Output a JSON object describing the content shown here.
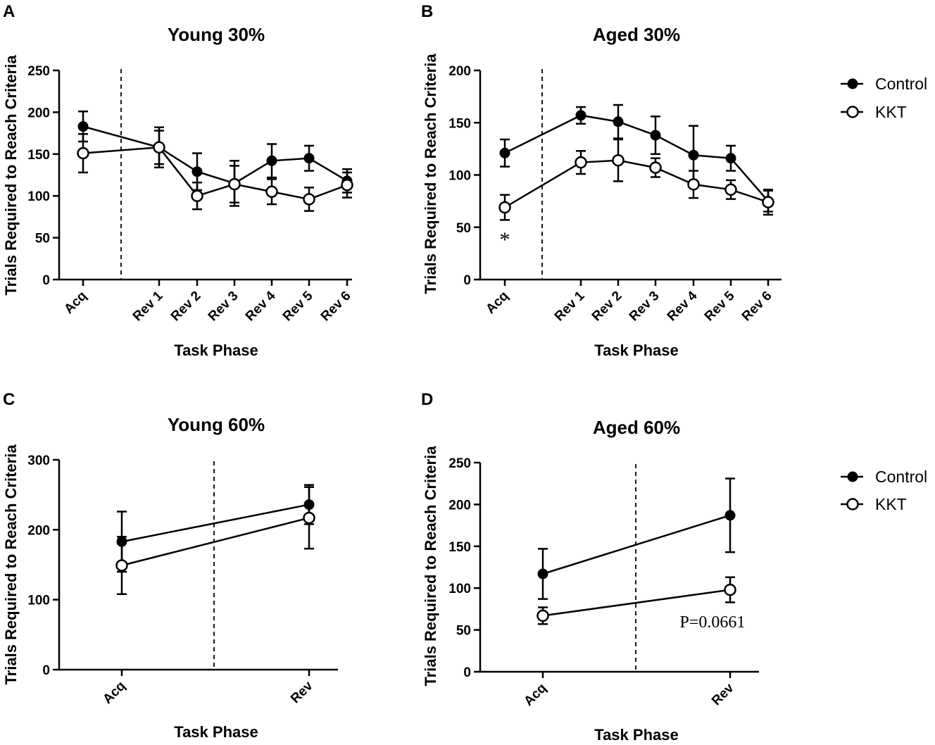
{
  "legend": {
    "control": "Control",
    "kkt": "KKT"
  },
  "chart_data": [
    {
      "panel": "A",
      "type": "line",
      "title": "Young 30%",
      "xlabel": "Task Phase",
      "ylabel": "Trials Required to Reach Criteria",
      "ylim": [
        0,
        250
      ],
      "yticks": [
        0,
        50,
        100,
        150,
        200,
        250
      ],
      "categories": [
        "Acq",
        "Rev 1",
        "Rev 2",
        "Rev 3",
        "Rev 4",
        "Rev 5",
        "Rev 6"
      ],
      "series": [
        {
          "name": "Control",
          "values": [
            183,
            158,
            129,
            115,
            142,
            145,
            118
          ],
          "errors": [
            18,
            20,
            22,
            27,
            20,
            15,
            14
          ]
        },
        {
          "name": "KKT",
          "values": [
            151,
            158,
            100,
            114,
            105,
            96,
            113
          ],
          "errors": [
            23,
            24,
            16,
            22,
            15,
            14,
            15
          ]
        }
      ],
      "annotations": []
    },
    {
      "panel": "B",
      "type": "line",
      "title": "Aged 30%",
      "xlabel": "Task Phase",
      "ylabel": "Trials Required to Reach Criteria",
      "ylim": [
        0,
        200
      ],
      "yticks": [
        0,
        50,
        100,
        150,
        200
      ],
      "categories": [
        "Acq",
        "Rev 1",
        "Rev 2",
        "Rev 3",
        "Rev 4",
        "Rev 5",
        "Rev 6"
      ],
      "series": [
        {
          "name": "Control",
          "values": [
            121,
            157,
            151,
            138,
            119,
            116,
            75
          ],
          "errors": [
            13,
            8,
            16,
            18,
            28,
            12,
            10
          ]
        },
        {
          "name": "KKT",
          "values": [
            69,
            112,
            114,
            107,
            91,
            86,
            74
          ],
          "errors": [
            12,
            11,
            20,
            9,
            13,
            9,
            12
          ]
        }
      ],
      "annotations": [
        {
          "text": "*",
          "category": "Acq"
        }
      ]
    },
    {
      "panel": "C",
      "type": "line",
      "title": "Young 60%",
      "xlabel": "Task Phase",
      "ylabel": "Trials Required to Reach Criteria",
      "ylim": [
        0,
        300
      ],
      "yticks": [
        0,
        100,
        200,
        300
      ],
      "categories": [
        "Acq",
        "Rev"
      ],
      "series": [
        {
          "name": "Control",
          "values": [
            183,
            236
          ],
          "errors": [
            43,
            28
          ]
        },
        {
          "name": "KKT",
          "values": [
            149,
            217
          ],
          "errors": [
            41,
            44
          ]
        }
      ],
      "annotations": []
    },
    {
      "panel": "D",
      "type": "line",
      "title": "Aged 60%",
      "xlabel": "Task Phase",
      "ylabel": "Trials Required to Reach Criteria",
      "ylim": [
        0,
        250
      ],
      "yticks": [
        0,
        50,
        100,
        150,
        200,
        250
      ],
      "categories": [
        "Acq",
        "Rev"
      ],
      "series": [
        {
          "name": "Control",
          "values": [
            117,
            187
          ],
          "errors": [
            30,
            44
          ]
        },
        {
          "name": "KKT",
          "values": [
            67,
            98
          ],
          "errors": [
            10,
            15
          ]
        }
      ],
      "annotations": [
        {
          "text": "P=0.0661",
          "category": "Rev"
        }
      ]
    }
  ]
}
